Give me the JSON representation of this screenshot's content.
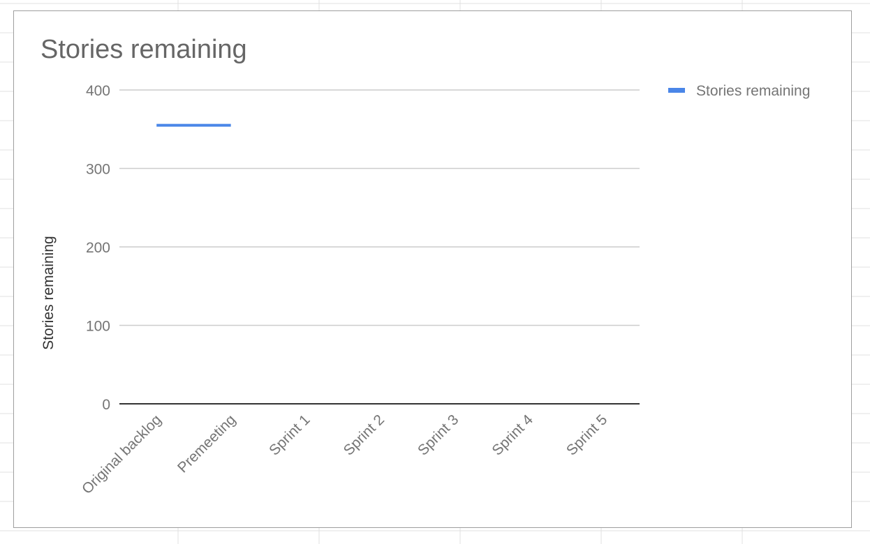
{
  "chart_data": {
    "type": "line",
    "title": "Stories remaining",
    "xlabel": "",
    "ylabel": "Stories remaining",
    "categories": [
      "Original backlog",
      "Premeeting",
      "Sprint 1",
      "Sprint 2",
      "Sprint 3",
      "Sprint 4",
      "Sprint 5"
    ],
    "series": [
      {
        "name": "Stories remaining",
        "values": [
          355,
          355,
          null,
          null,
          null,
          null,
          null
        ]
      }
    ],
    "ylim": [
      0,
      400
    ],
    "yticks": [
      0,
      100,
      200,
      300,
      400
    ],
    "grid": true,
    "legend_position": "right"
  },
  "colors": {
    "series": "#4a86e8",
    "gridline": "#cccccc",
    "axis": "#333333",
    "text": "#757575",
    "title": "#666666",
    "sheet_grid": "#e0e0e0"
  }
}
